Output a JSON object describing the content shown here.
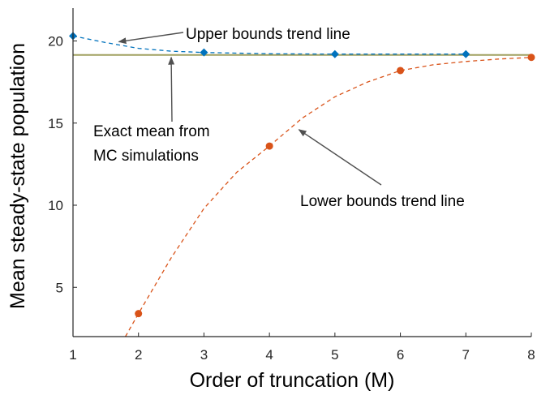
{
  "chart_data": {
    "type": "scatter",
    "xlabel": "Order of truncation (M)",
    "ylabel": "Mean steady-state population",
    "xlim": [
      1,
      8
    ],
    "ylim": [
      2,
      22
    ],
    "xticks": [
      1,
      2,
      3,
      4,
      5,
      6,
      7,
      8
    ],
    "yticks": [
      5,
      10,
      15,
      20
    ],
    "grid": false,
    "series": [
      {
        "kind": "upper-bounds-points",
        "marker": "diamond",
        "color": "#0072BD",
        "x": [
          1,
          3,
          5,
          7
        ],
        "y": [
          20.3,
          19.3,
          19.2,
          19.2
        ]
      },
      {
        "kind": "upper-bounds-trend",
        "line": "dashed",
        "color": "#0072BD",
        "x": [
          1,
          1.5,
          2,
          2.5,
          3,
          4,
          5,
          6,
          7
        ],
        "y": [
          20.3,
          19.9,
          19.55,
          19.38,
          19.3,
          19.22,
          19.2,
          19.2,
          19.2
        ]
      },
      {
        "kind": "exact-mean",
        "line": "solid",
        "color": "#A0A060",
        "x": [
          1,
          8
        ],
        "y": [
          19.15,
          19.15
        ]
      },
      {
        "kind": "lower-bounds-points",
        "marker": "circle",
        "color": "#D95319",
        "x": [
          2,
          4,
          6,
          8
        ],
        "y": [
          3.4,
          13.6,
          18.2,
          19.0
        ]
      },
      {
        "kind": "lower-bounds-trend",
        "line": "dashed",
        "color": "#D95319",
        "x": [
          1.8,
          2,
          2.5,
          3,
          3.5,
          4,
          4.5,
          5,
          5.5,
          6,
          6.5,
          7,
          7.5,
          8
        ],
        "y": [
          2.0,
          3.4,
          6.8,
          9.8,
          12.0,
          13.6,
          15.3,
          16.6,
          17.5,
          18.2,
          18.55,
          18.75,
          18.9,
          19.0
        ]
      }
    ],
    "annotations": [
      {
        "text": "Upper bounds trend line",
        "arrow_to": [
          1.7,
          19.95
        ]
      },
      {
        "text": [
          "Exact mean from",
          "MC simulations"
        ],
        "arrow_to": [
          2.5,
          19.0
        ]
      },
      {
        "text": "Lower bounds trend line",
        "arrow_to": [
          4.45,
          14.6
        ]
      }
    ]
  }
}
